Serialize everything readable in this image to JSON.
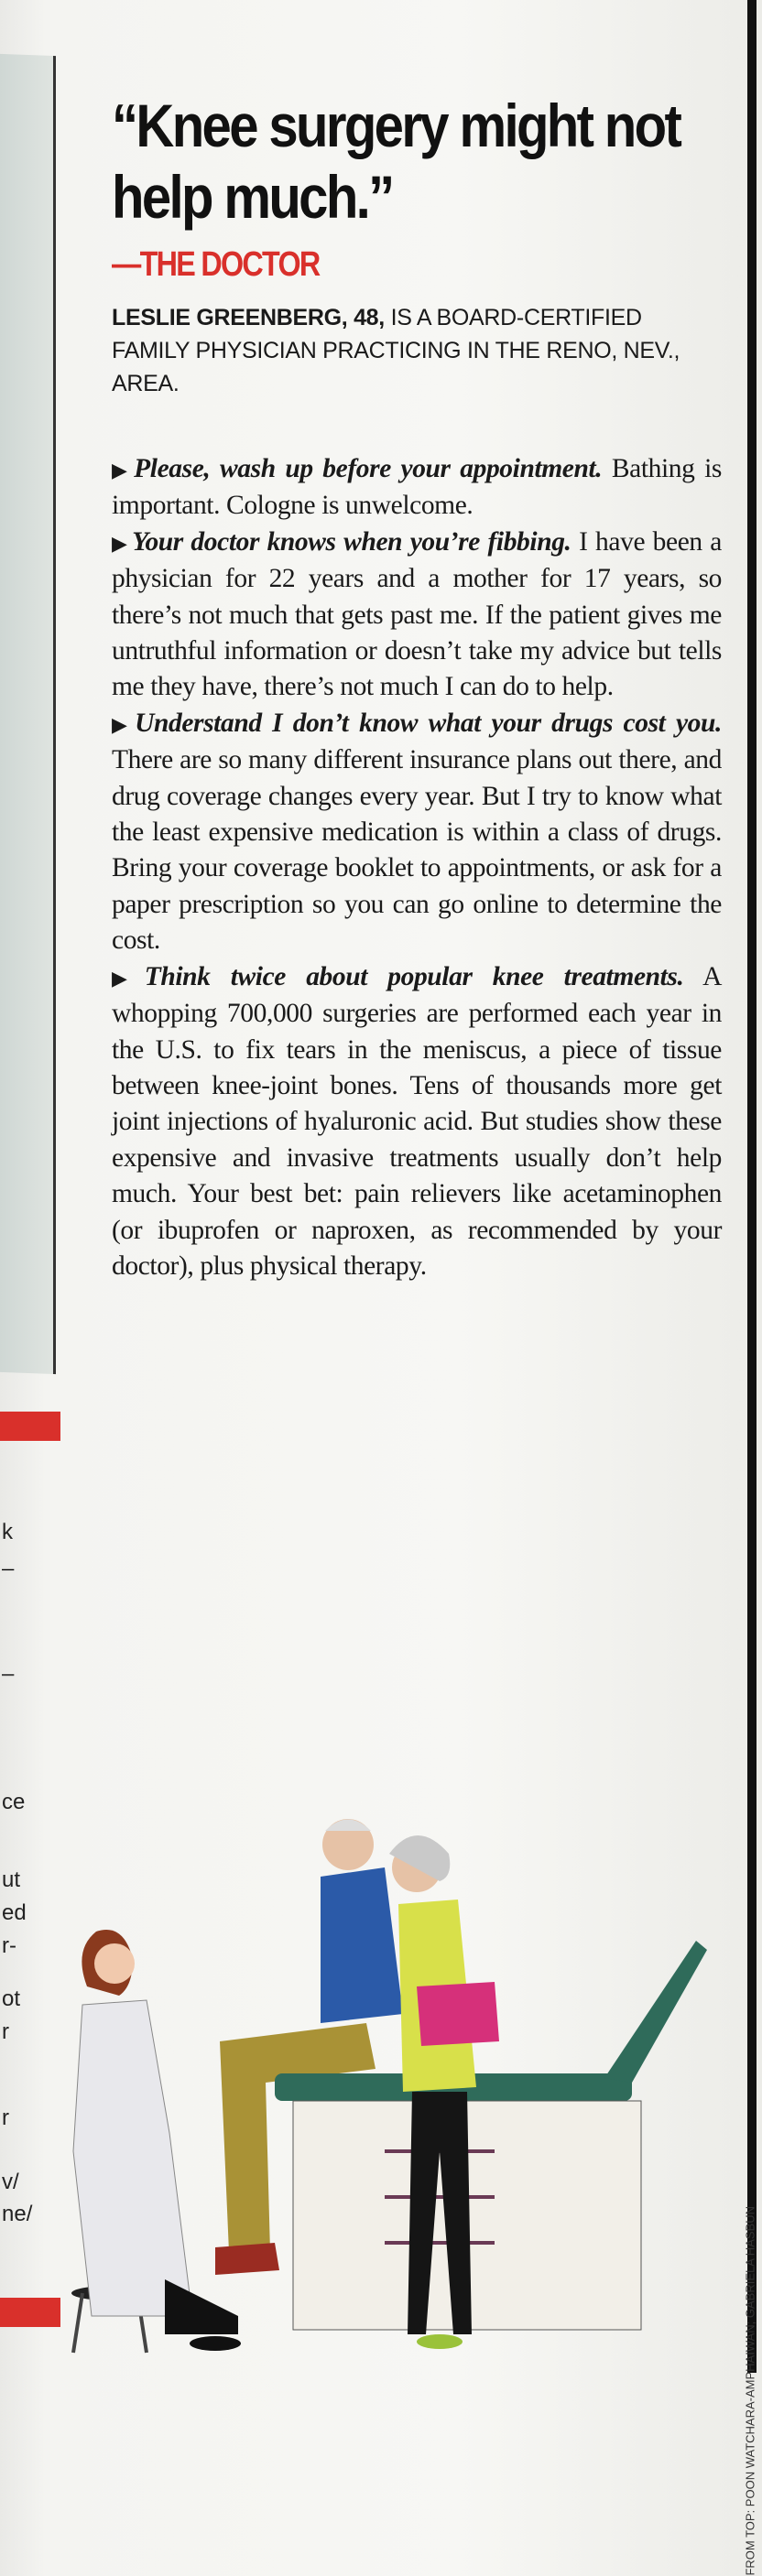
{
  "headline": "“Knee surgery might not help much.”",
  "attribution": "—THE DOCTOR",
  "bio": {
    "name": "LESLIE GREENBERG, 48,",
    "text": " IS A BOARD-CERTIFIED FAMILY PHYSICIAN PRACTICING IN THE RENO, NEV., AREA."
  },
  "tips": [
    {
      "head": "Please, wash up before your appointment.",
      "body": " Bathing is important. Cologne is unwelcome."
    },
    {
      "head": "Your doctor knows when you’re fibbing.",
      "body": " I have been a physician for 22 years and a mother for 17 years, so there’s not much that gets past me. If the patient gives me untruthful information or doesn’t take my advice but tells me they have, there’s not much I can do to help."
    },
    {
      "head": "Understand I don’t know what your drugs cost you.",
      "body": " There are so many different insurance plans out there, and drug coverage changes every year. But I try to know what the least expensive medication is within a class of drugs. Bring your coverage booklet to appointments, or ask for a paper prescription so you can go online to determine the cost."
    },
    {
      "head": "Think twice about popular knee treatments.",
      "body": " A whopping 700,000 surgeries are performed each year in the U.S. to fix tears in the meniscus, a piece of tissue between knee-joint bones. Tens of thousands more get joint injections of hyaluronic acid. But studies show these expensive and invasive treatments usually don’t help much. Your best bet: pain relievers like acetaminophen (or ibuprofen or naproxen, as recommended by your doctor), plus physical therapy."
    }
  ],
  "photo_credit": "FROM TOP: POON WATCHARA-AMPHAIWAN; GABRIELA HASBUN",
  "left_page_fragments": [
    "k",
    "–",
    "–",
    "ce",
    "ut",
    "ed",
    "r-",
    "ot",
    "r",
    "r",
    "v/",
    "ne/"
  ],
  "colors": {
    "accent_red": "#d9302b",
    "text": "#1a1a1a",
    "table_green": "#2f6b5a"
  }
}
